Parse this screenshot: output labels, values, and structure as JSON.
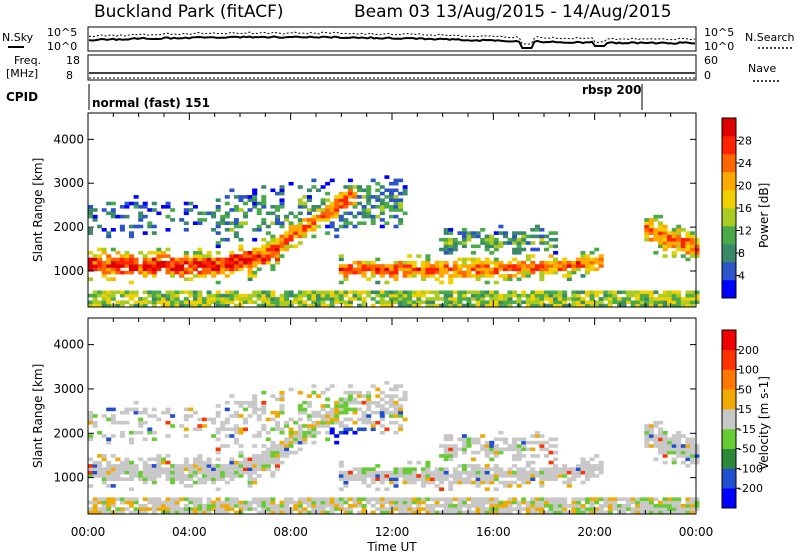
{
  "header": {
    "station_title": "Buckland Park (fitACF)",
    "beam_title": "Beam 03 13/Aug/2015 - 14/Aug/2015"
  },
  "nsky_panel": {
    "left_label": "N.Sky",
    "right_label": "N.Search",
    "left_ticks": [
      "10^5",
      "10^0"
    ],
    "right_ticks": [
      "10^5",
      "10^0"
    ]
  },
  "freq_panel": {
    "left_label": "Freq.",
    "left_unit": "[MHz]",
    "right_label": "Nave",
    "left_ticks": [
      "18",
      "8"
    ],
    "right_ticks": [
      "60",
      "0"
    ]
  },
  "cpid_panel": {
    "label": "CPID",
    "mode_normal": "normal (fast) 151",
    "mode_rbsp": "rbsp 200"
  },
  "time_axis": {
    "label": "Time UT",
    "ticks": [
      "00:00",
      "04:00",
      "08:00",
      "12:00",
      "16:00",
      "20:00",
      "00:00"
    ]
  },
  "chart_data": [
    {
      "type": "heatmap",
      "title": "",
      "xlabel": "Time UT",
      "ylabel": "Slant Range [km]",
      "x_ticks": [
        "00:00",
        "04:00",
        "08:00",
        "12:00",
        "16:00",
        "20:00",
        "00:00"
      ],
      "y_ticks": [
        "1000",
        "2000",
        "3000",
        "4000"
      ],
      "ylim": [
        180,
        4600
      ],
      "colorbar": {
        "label": "Power [dB]",
        "ticks": [
          "4",
          "8",
          "12",
          "16",
          "20",
          "24",
          "28"
        ],
        "colors": [
          "#0000ff",
          "#2a54c8",
          "#3a8a6a",
          "#48aa48",
          "#aacc22",
          "#f0d000",
          "#ffaa00",
          "#ff6600",
          "#ff2200",
          "#dd0000"
        ]
      }
    },
    {
      "type": "heatmap",
      "title": "",
      "xlabel": "Time UT",
      "ylabel": "Slant Range [km]",
      "x_ticks": [
        "00:00",
        "04:00",
        "08:00",
        "12:00",
        "16:00",
        "20:00",
        "00:00"
      ],
      "y_ticks": [
        "1000",
        "2000",
        "3000",
        "4000"
      ],
      "ylim": [
        180,
        4600
      ],
      "colorbar": {
        "label": "Velocity [m s-1]",
        "ticks": [
          "200",
          "100",
          "50",
          "15",
          "-15",
          "-50",
          "-100",
          "-200"
        ],
        "colors": [
          "#0000ff",
          "#2050d0",
          "#2a8a3a",
          "#66cc33",
          "#c8c8c8",
          "#f0aa00",
          "#ff7700",
          "#ff3300",
          "#ee0000"
        ]
      }
    }
  ]
}
